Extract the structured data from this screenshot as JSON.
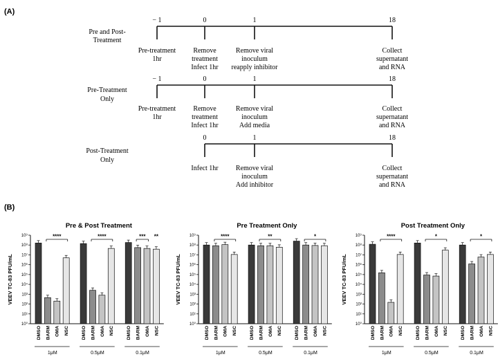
{
  "panel_a": {
    "label": "(A)",
    "rows": [
      {
        "name": "Pre and Post-Treatment",
        "name_lines": [
          "Pre and Post-",
          "Treatment"
        ],
        "ticks": [
          "− 1",
          "0",
          "1",
          "18"
        ],
        "events": [
          [
            "Pre-treatment",
            "1hr"
          ],
          [
            "Remove",
            "treatment",
            "Infect 1hr"
          ],
          [
            "Remove viral",
            "inoculum",
            "reapply inhibitor"
          ],
          [
            "Collect",
            "supernatant",
            "and RNA"
          ]
        ]
      },
      {
        "name": "Pre-Treatment Only",
        "name_lines": [
          "Pre-Treatment",
          "Only"
        ],
        "ticks": [
          "− 1",
          "0",
          "1",
          "18"
        ],
        "events": [
          [
            "Pre-treatment",
            "1hr"
          ],
          [
            "Remove",
            "treatment",
            "Infect 1hr"
          ],
          [
            "Remove viral",
            "inoculum",
            "Add media"
          ],
          [
            "Collect",
            "supernatant",
            "and RNA"
          ]
        ]
      },
      {
        "name": "Post-Treatment Only",
        "name_lines": [
          "Post-Treatment",
          "Only"
        ],
        "ticks": [
          "0",
          "1",
          "18"
        ],
        "events": [
          [
            "Infect 1hr"
          ],
          [
            "Remove viral",
            "inoculum",
            "Add inhibitor"
          ],
          [
            "Collect",
            "supernatant",
            "and RNA"
          ]
        ]
      }
    ]
  },
  "panel_b_label": "(B)",
  "chart_data": [
    {
      "type": "bar",
      "title": "Pre & Post Treatment",
      "ylabel": "VEEV TC-83 PFU/mL",
      "ylim_log10": [
        0,
        9
      ],
      "ytick_labels": [
        "10⁰",
        "10¹",
        "10²",
        "10³",
        "10⁴",
        "10⁵",
        "10⁶",
        "10⁷",
        "10⁸",
        "10⁹"
      ],
      "groups": [
        {
          "concentration": "1μM",
          "categories": [
            "DMSO",
            "BARM",
            "OMA",
            "NSC"
          ],
          "values": [
            160000000.0,
            450.0,
            200.0,
            5000000.0
          ],
          "significance": "****"
        },
        {
          "concentration": "0.5μM",
          "categories": [
            "DMSO",
            "BARM",
            "OMA",
            "NSC"
          ],
          "values": [
            140000000.0,
            2500.0,
            800.0,
            45000000.0
          ],
          "significance": "****"
        },
        {
          "concentration": "0.1μM",
          "categories": [
            "DMSO",
            "BARM",
            "OMA",
            "NSC"
          ],
          "values": [
            180000000.0,
            55000000.0,
            45000000.0,
            38000000.0
          ],
          "significance": "***",
          "extra_significance": "**"
        }
      ]
    },
    {
      "type": "bar",
      "title": "Pre Treatment Only",
      "ylabel": "VEEV TC-83 PFU/mL",
      "ylim_log10": [
        0,
        9
      ],
      "ytick_labels": [
        "10⁰",
        "10¹",
        "10²",
        "10³",
        "10⁴",
        "10⁵",
        "10⁶",
        "10⁷",
        "10⁸",
        "10⁹"
      ],
      "groups": [
        {
          "concentration": "1μM",
          "categories": [
            "DMSO",
            "BARM",
            "OMA",
            "NSC"
          ],
          "values": [
            100000000.0,
            85000000.0,
            110000000.0,
            11000000.0
          ],
          "significance": "****"
        },
        {
          "concentration": "0.5μM",
          "categories": [
            "DMSO",
            "BARM",
            "OMA",
            "NSC"
          ],
          "values": [
            100000000.0,
            85000000.0,
            85000000.0,
            60000000.0
          ],
          "significance": "**"
        },
        {
          "concentration": "0.1μM",
          "categories": [
            "DMSO",
            "BARM",
            "OMA",
            "NSC"
          ],
          "values": [
            250000000.0,
            100000000.0,
            90000000.0,
            85000000.0
          ],
          "significance": "*"
        }
      ]
    },
    {
      "type": "bar",
      "title": "Post Treatment Only",
      "ylabel": "VEEV TC-83 PFU/mL",
      "ylim_log10": [
        0,
        9
      ],
      "ytick_labels": [
        "10⁰",
        "10¹",
        "10²",
        "10³",
        "10⁴",
        "10⁵",
        "10⁶",
        "10⁷",
        "10⁸",
        "10⁹"
      ],
      "groups": [
        {
          "concentration": "1μM",
          "categories": [
            "DMSO",
            "BARM",
            "OMA",
            "NSC"
          ],
          "values": [
            120000000.0,
            150000.0,
            150.0,
            11000000.0
          ],
          "significance": "****"
        },
        {
          "concentration": "0.5μM",
          "categories": [
            "DMSO",
            "BARM",
            "OMA",
            "NSC"
          ],
          "values": [
            160000000.0,
            90000.0,
            70000.0,
            30000000.0
          ],
          "significance": "*"
        },
        {
          "concentration": "0.1μM",
          "categories": [
            "DMSO",
            "BARM",
            "OMA",
            "NSC"
          ],
          "values": [
            100000000.0,
            1200000.0,
            6000000.0,
            11000000.0
          ],
          "significance": "*"
        }
      ]
    }
  ],
  "colors": {
    "DMSO": "#3a3a3a",
    "BARM": "#8c8c8c",
    "OMA": "#c4c4c4",
    "NSC": "#e6e6e6",
    "line": "#111111"
  }
}
